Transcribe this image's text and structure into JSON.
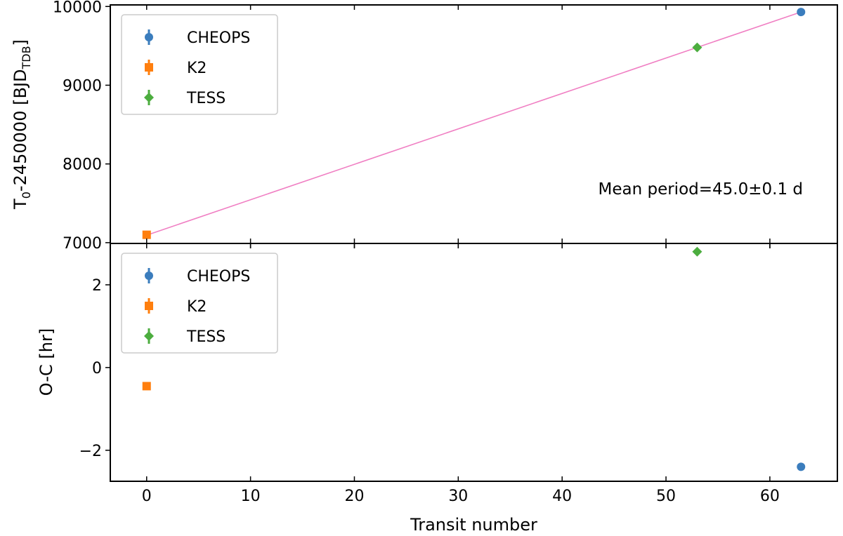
{
  "chart_data": [
    {
      "type": "scatter",
      "panel": "top",
      "title": "",
      "xlabel": "",
      "ylabel_main": "T",
      "ylabel_sub": "0",
      "ylabel_mid": "-2450000 [BJD",
      "ylabel_sub2": "TDB",
      "ylabel_end": "]",
      "xlim": [
        -3.5,
        66.5
      ],
      "ylim": [
        6990,
        10020
      ],
      "xticks": [
        0,
        10,
        20,
        30,
        40,
        50,
        60
      ],
      "yticks": [
        7000,
        8000,
        9000,
        10000
      ],
      "grid": false,
      "legend": {
        "position": "top-left",
        "entries": [
          "CHEOPS",
          "K2",
          "TESS"
        ]
      },
      "series": [
        {
          "name": "CHEOPS",
          "marker": "circle",
          "color": "#3b7dbd",
          "points": [
            {
              "x": 63,
              "y": 9930
            }
          ]
        },
        {
          "name": "K2",
          "marker": "square",
          "color": "#ff7f0e",
          "points": [
            {
              "x": 0,
              "y": 7100
            }
          ]
        },
        {
          "name": "TESS",
          "marker": "diamond",
          "color": "#4cad3f",
          "points": [
            {
              "x": 53,
              "y": 9480
            }
          ]
        }
      ],
      "fit_line": {
        "color": "#f07fc3",
        "x": [
          0,
          63
        ],
        "y": [
          7095,
          9930
        ]
      },
      "annotation": "Mean period=45.0±0.1 d"
    },
    {
      "type": "scatter",
      "panel": "bottom",
      "title": "",
      "xlabel": "Transit number",
      "ylabel": "O-C [hr]",
      "xlim": [
        -3.5,
        66.5
      ],
      "ylim": [
        -2.75,
        3.0
      ],
      "xticks": [
        0,
        10,
        20,
        30,
        40,
        50,
        60
      ],
      "yticks": [
        -2,
        0,
        2
      ],
      "ytick_labels": [
        "−2",
        "0",
        "2"
      ],
      "grid": false,
      "legend": {
        "position": "top-left",
        "entries": [
          "CHEOPS",
          "K2",
          "TESS"
        ]
      },
      "series": [
        {
          "name": "CHEOPS",
          "marker": "circle",
          "color": "#3b7dbd",
          "points": [
            {
              "x": 63,
              "y": -2.4
            }
          ]
        },
        {
          "name": "K2",
          "marker": "square",
          "color": "#ff7f0e",
          "points": [
            {
              "x": 0,
              "y": -0.45
            }
          ]
        },
        {
          "name": "TESS",
          "marker": "diamond",
          "color": "#4cad3f",
          "points": [
            {
              "x": 53,
              "y": 2.8
            }
          ]
        }
      ]
    }
  ]
}
